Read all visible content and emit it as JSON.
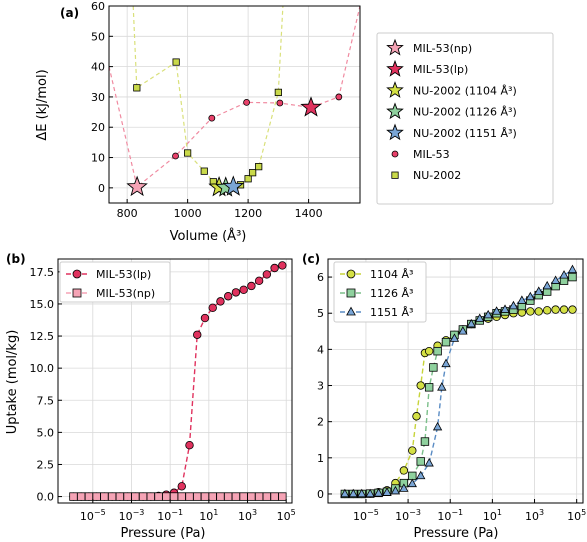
{
  "colors": {
    "mil53": "#e8416a",
    "mil53_line": "#f08aa0",
    "mil53np": "#f5a3b5",
    "nu2002": "#c9d94a",
    "nu2002_line": "#d9e07a",
    "nu1104": "#d4e044",
    "nu1126": "#8fd19e",
    "nu1151": "#7aa6d6",
    "nu1104_line": "#c7d43a",
    "nu1126_line": "#7bbf8a",
    "nu1151_line": "#5a8cc4",
    "mil53lp": "#e0325e"
  },
  "chart_data": [
    {
      "panel": "(a)",
      "type": "scatter",
      "xlabel": "Volume (Å³)",
      "ylabel": "ΔE (kJ/mol)",
      "xlim": [
        740,
        1570
      ],
      "ylim": [
        -5,
        60
      ],
      "xticks": [
        800,
        1000,
        1200,
        1400
      ],
      "yticks": [
        0,
        10,
        20,
        30,
        40,
        50,
        60
      ],
      "legend_position": "right",
      "series": [
        {
          "name": "MIL-53(np)",
          "marker": "star",
          "color_key": "mil53np",
          "points": [
            [
              833,
              0.3
            ]
          ]
        },
        {
          "name": "MIL-53(lp)",
          "marker": "star",
          "color_key": "mil53lp",
          "points": [
            [
              1408,
              26.5
            ]
          ]
        },
        {
          "name": "NU-2002 (1104 Å³)",
          "marker": "star",
          "color_key": "nu1104",
          "points": [
            [
              1104,
              0.2
            ]
          ]
        },
        {
          "name": "NU-2002 (1126 Å³)",
          "marker": "star",
          "color_key": "nu1126",
          "points": [
            [
              1126,
              0.1
            ]
          ]
        },
        {
          "name": "NU-2002 (1151 Å³)",
          "marker": "star",
          "color_key": "nu1151",
          "points": [
            [
              1151,
              0.4
            ]
          ]
        },
        {
          "name": "MIL-53",
          "marker": "circle",
          "color_key": "mil53",
          "line": true,
          "points": [
            [
              740,
              40
            ],
            [
              833,
              0.3
            ],
            [
              960,
              10.5
            ],
            [
              1080,
              23
            ],
            [
              1195,
              28.2
            ],
            [
              1305,
              28
            ],
            [
              1408,
              26.5
            ],
            [
              1500,
              30
            ],
            [
              1570,
              60
            ]
          ]
        },
        {
          "name": "NU-2002",
          "marker": "square",
          "color_key": "nu2002",
          "line": true,
          "points": [
            [
              820,
              60
            ],
            [
              832,
              33
            ],
            [
              962,
              41.5
            ],
            [
              1000,
              11.5
            ],
            [
              1055,
              5.5
            ],
            [
              1085,
              2
            ],
            [
              1104,
              0.2
            ],
            [
              1126,
              0.1
            ],
            [
              1151,
              0.4
            ],
            [
              1175,
              1
            ],
            [
              1200,
              3
            ],
            [
              1215,
              5
            ],
            [
              1235,
              7
            ],
            [
              1300,
              31.5
            ],
            [
              1315,
              60
            ]
          ]
        }
      ]
    },
    {
      "panel": "(b)",
      "type": "line",
      "xlabel": "Pressure (Pa)",
      "ylabel": "Uptake (mol/kg)",
      "xscale": "log",
      "xlim_log10": [
        -6.8,
        5.3
      ],
      "ylim": [
        -0.5,
        18.5
      ],
      "xticks_log10": [
        -5,
        -3,
        -1,
        1,
        3,
        5
      ],
      "yticks": [
        0.0,
        2.5,
        5.0,
        7.5,
        10.0,
        12.5,
        15.0,
        17.5
      ],
      "legend_position": "top-left",
      "series": [
        {
          "name": "MIL-53(lp)",
          "marker": "circle",
          "color_key": "mil53lp",
          "log10_x": [
            -6.0,
            -5.6,
            -5.2,
            -4.8,
            -4.4,
            -4.0,
            -3.6,
            -3.2,
            -2.8,
            -2.4,
            -2.0,
            -1.6,
            -1.2,
            -0.8,
            -0.4,
            0.0,
            0.4,
            0.8,
            1.2,
            1.6,
            2.0,
            2.4,
            2.8,
            3.2,
            3.6,
            4.0,
            4.4,
            4.8
          ],
          "values": [
            0.0,
            0.0,
            0.0,
            0.0,
            0.0,
            0.0,
            0.0,
            0.0,
            0.0,
            0.0,
            0.0,
            0.05,
            0.15,
            0.3,
            0.8,
            4.0,
            12.6,
            13.9,
            14.7,
            15.2,
            15.6,
            15.9,
            16.1,
            16.4,
            16.8,
            17.3,
            17.8,
            18.0
          ],
          "note_series_points": "markers shown from log10(P) ≈ -0.4 upward"
        },
        {
          "name": "MIL-53(np)",
          "marker": "square",
          "color_key": "mil53np",
          "log10_x": [
            -6.0,
            -5.6,
            -5.2,
            -4.8,
            -4.4,
            -4.0,
            -3.6,
            -3.2,
            -2.8,
            -2.4,
            -2.0,
            -1.6,
            -1.2,
            -0.8,
            -0.4,
            0.0,
            0.4,
            0.8,
            1.2,
            1.6,
            2.0,
            2.4,
            2.8,
            3.2,
            3.6,
            4.0,
            4.4,
            4.8
          ],
          "values": [
            0.0,
            0.0,
            0.0,
            0.0,
            0.0,
            0.0,
            0.0,
            0.0,
            0.0,
            0.0,
            0.0,
            0.0,
            0.0,
            0.0,
            0.0,
            0.0,
            0.0,
            0.0,
            0.0,
            0.0,
            0.0,
            0.0,
            0.0,
            0.0,
            0.0,
            0.0,
            0.0,
            0.0
          ]
        }
      ]
    },
    {
      "panel": "(c)",
      "type": "line",
      "xlabel": "Pressure (Pa)",
      "ylabel": "",
      "xscale": "log",
      "xlim_log10": [
        -6.8,
        5.3
      ],
      "ylim": [
        -0.25,
        6.5
      ],
      "xticks_log10": [
        -5,
        -3,
        -1,
        1,
        3,
        5
      ],
      "yticks": [
        0,
        1,
        2,
        3,
        4,
        5,
        6
      ],
      "legend_position": "top-left",
      "series": [
        {
          "name": "1104 Å³",
          "marker": "circle",
          "color_key": "nu1104",
          "log10_x": [
            -6.0,
            -5.6,
            -5.2,
            -4.8,
            -4.4,
            -4.0,
            -3.6,
            -3.2,
            -2.8,
            -2.6,
            -2.4,
            -2.2,
            -2.0,
            -1.6,
            -1.2,
            -0.8,
            -0.4,
            0.0,
            0.4,
            0.8,
            1.2,
            1.6,
            2.0,
            2.4,
            2.8,
            3.2,
            3.6,
            4.0,
            4.4,
            4.8
          ],
          "values": [
            0.0,
            0.0,
            0.0,
            0.01,
            0.05,
            0.1,
            0.3,
            0.65,
            1.2,
            2.15,
            3.0,
            3.9,
            3.95,
            4.1,
            4.25,
            4.4,
            4.55,
            4.7,
            4.8,
            4.85,
            4.9,
            4.95,
            5.0,
            5.02,
            5.05,
            5.05,
            5.08,
            5.1,
            5.1,
            5.1
          ]
        },
        {
          "name": "1126 Å³",
          "marker": "square",
          "color_key": "nu1126",
          "log10_x": [
            -6.0,
            -5.6,
            -5.2,
            -4.8,
            -4.4,
            -4.0,
            -3.6,
            -3.2,
            -2.8,
            -2.4,
            -2.2,
            -2.0,
            -1.8,
            -1.6,
            -1.2,
            -0.8,
            -0.4,
            0.0,
            0.4,
            0.8,
            1.2,
            1.6,
            2.0,
            2.4,
            2.8,
            3.2,
            3.6,
            4.0,
            4.4,
            4.8
          ],
          "values": [
            0.0,
            0.0,
            0.0,
            0.01,
            0.03,
            0.06,
            0.15,
            0.3,
            0.5,
            0.9,
            1.45,
            2.95,
            3.5,
            3.95,
            4.2,
            4.4,
            4.55,
            4.7,
            4.8,
            4.9,
            5.0,
            5.05,
            5.1,
            5.2,
            5.35,
            5.5,
            5.6,
            5.75,
            5.9,
            6.0
          ]
        },
        {
          "name": "1151 Å³",
          "marker": "triangle",
          "color_key": "nu1151",
          "log10_x": [
            -6.0,
            -5.6,
            -5.2,
            -4.8,
            -4.4,
            -4.0,
            -3.6,
            -3.2,
            -2.8,
            -2.4,
            -2.0,
            -1.6,
            -1.4,
            -1.2,
            -0.8,
            -0.4,
            0.0,
            0.4,
            0.8,
            1.2,
            1.6,
            2.0,
            2.4,
            2.8,
            3.2,
            3.6,
            4.0,
            4.4,
            4.8
          ],
          "values": [
            0.0,
            0.0,
            0.0,
            0.0,
            0.02,
            0.04,
            0.08,
            0.15,
            0.28,
            0.5,
            0.85,
            1.85,
            2.95,
            3.6,
            4.3,
            4.5,
            4.7,
            4.85,
            4.95,
            5.05,
            5.1,
            5.2,
            5.35,
            5.45,
            5.6,
            5.75,
            5.9,
            6.05,
            6.2
          ]
        }
      ]
    }
  ]
}
